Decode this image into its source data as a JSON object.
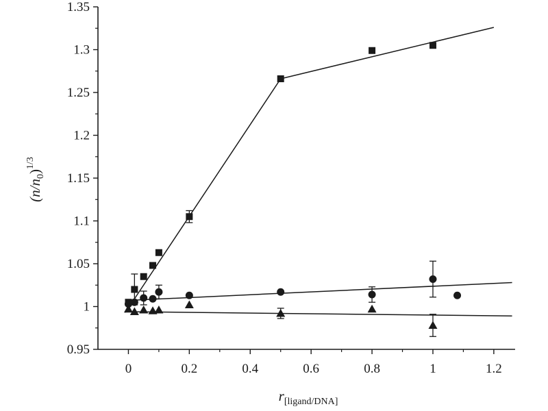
{
  "chart_data": {
    "type": "scatter",
    "title": "",
    "xlabel": {
      "main": "r",
      "subscript": "[ligand/DNA]"
    },
    "ylabel": {
      "main": "(n/n",
      "sub": "0",
      "close": ")",
      "sup": "1/3"
    },
    "xlim": [
      -0.1,
      1.27
    ],
    "ylim": [
      0.95,
      1.35
    ],
    "xticks": [
      0,
      0.2,
      0.4,
      0.6,
      0.8,
      1,
      1.2
    ],
    "xtick_labels": [
      "0",
      "0.2",
      "0.4",
      "0.6",
      "0.8",
      "1",
      "1.2"
    ],
    "yticks": [
      0.95,
      1,
      1.05,
      1.1,
      1.15,
      1.2,
      1.25,
      1.3,
      1.35
    ],
    "ytick_labels": [
      "0.95",
      "1",
      "1.05",
      "1.1",
      "1.15",
      "1.2",
      "1.25",
      "1.3",
      "1.35"
    ],
    "grid": false,
    "legend": "none",
    "series": [
      {
        "name": "squares",
        "marker": "square",
        "points": [
          {
            "x": 0,
            "y": 1.005
          },
          {
            "x": 0.02,
            "y": 1.02,
            "err": 0.018
          },
          {
            "x": 0.05,
            "y": 1.035
          },
          {
            "x": 0.08,
            "y": 1.048
          },
          {
            "x": 0.1,
            "y": 1.063
          },
          {
            "x": 0.2,
            "y": 1.105,
            "err": 0.007
          },
          {
            "x": 0.5,
            "y": 1.266
          },
          {
            "x": 0.8,
            "y": 1.299
          },
          {
            "x": 1,
            "y": 1.305
          }
        ],
        "fit_lines": [
          {
            "x": [
              -0.01,
              0.5
            ],
            "y": [
              0.993,
              1.266
            ]
          },
          {
            "x": [
              0.5,
              1.2
            ],
            "y": [
              1.266,
              1.326
            ]
          }
        ]
      },
      {
        "name": "circles",
        "marker": "circle",
        "points": [
          {
            "x": 0,
            "y": 1.003
          },
          {
            "x": 0.02,
            "y": 1.005
          },
          {
            "x": 0.05,
            "y": 1.01,
            "err": 0.008
          },
          {
            "x": 0.08,
            "y": 1.009
          },
          {
            "x": 0.1,
            "y": 1.017,
            "err": 0.008
          },
          {
            "x": 0.2,
            "y": 1.013
          },
          {
            "x": 0.5,
            "y": 1.017
          },
          {
            "x": 0.8,
            "y": 1.014,
            "err": 0.009
          },
          {
            "x": 1,
            "y": 1.032,
            "err": 0.021
          },
          {
            "x": 1.08,
            "y": 1.013
          }
        ],
        "fit_lines": [
          {
            "x": [
              -0.01,
              1.26
            ],
            "y": [
              1.007,
              1.028
            ]
          }
        ]
      },
      {
        "name": "triangles",
        "marker": "triangle",
        "points": [
          {
            "x": 0,
            "y": 0.997
          },
          {
            "x": 0.02,
            "y": 0.994
          },
          {
            "x": 0.05,
            "y": 0.996
          },
          {
            "x": 0.08,
            "y": 0.995
          },
          {
            "x": 0.1,
            "y": 0.996
          },
          {
            "x": 0.2,
            "y": 1.002
          },
          {
            "x": 0.5,
            "y": 0.992,
            "err": 0.006
          },
          {
            "x": 0.8,
            "y": 0.997
          },
          {
            "x": 1,
            "y": 0.978,
            "err": 0.013
          }
        ],
        "fit_lines": [
          {
            "x": [
              -0.01,
              1.26
            ],
            "y": [
              0.994,
              0.989
            ]
          }
        ]
      }
    ]
  }
}
